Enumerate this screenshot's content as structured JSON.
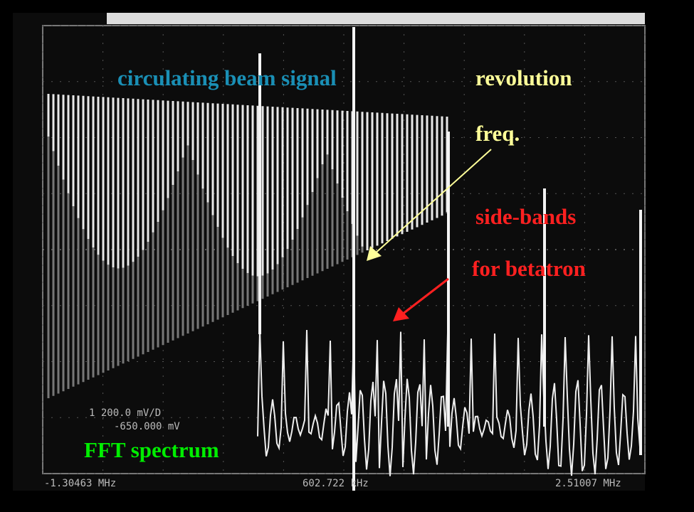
{
  "annotations": {
    "beam_signal": "circulating beam signal",
    "revolution_line1": "revolution",
    "revolution_line2": "freq.",
    "sidebands_line1": "side-bands",
    "sidebands_line2": "for betatron",
    "fft": "FFT spectrum"
  },
  "scope_readout": {
    "scale": "1  200.0 mV/D",
    "offset": "-650.000 mV",
    "freq_start": "-1.30463 MHz",
    "freq_center": "602.722 kHz",
    "freq_end": "2.51007 MHz"
  }
}
